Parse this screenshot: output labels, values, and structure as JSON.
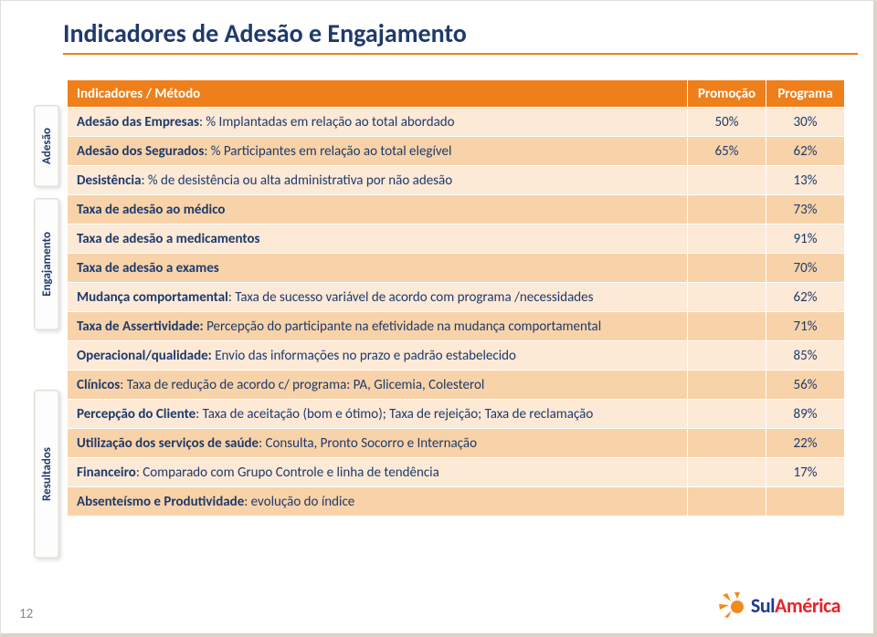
{
  "page": {
    "title": "Indicadores de Adesão e Engajamento",
    "number": "12"
  },
  "side_tabs": {
    "adesao": "Adesão",
    "engajamento": "Engajamento",
    "resultados": "Resultados"
  },
  "table": {
    "header": {
      "indicador": "Indicadores / Método",
      "promocao": "Promoção",
      "programa": "Programa"
    },
    "colors": {
      "header_bg": "#ef7f1a",
      "row_light": "#fce9d6",
      "row_dark": "#f8d3a9",
      "text": "#1f3a6b"
    },
    "rows": [
      {
        "label_bold": "Adesão das Empresas",
        "label_rest": ": % Implantadas em relação ao total abordado",
        "prom": "50%",
        "prog": "30%"
      },
      {
        "label_bold": "Adesão dos Segurados",
        "label_rest": ": % Participantes em relação ao total elegível",
        "prom": "65%",
        "prog": "62%"
      },
      {
        "label_bold": "Desistência",
        "label_rest": ": % de desistência ou alta administrativa por não adesão",
        "prom": "",
        "prog": "13%"
      },
      {
        "label_bold": "Taxa de adesão ao médico",
        "label_rest": "",
        "prom": "",
        "prog": "73%"
      },
      {
        "label_bold": "Taxa de adesão a medicamentos",
        "label_rest": "",
        "prom": "",
        "prog": "91%"
      },
      {
        "label_bold": "Taxa de adesão a exames",
        "label_rest": "",
        "prom": "",
        "prog": "70%"
      },
      {
        "label_bold": "Mudança comportamental",
        "label_rest": ": Taxa de sucesso variável de acordo com programa /necessidades",
        "prom": "",
        "prog": "62%"
      },
      {
        "label_bold": "Taxa de Assertividade:",
        "label_rest": " Percepção do participante na efetividade na mudança comportamental",
        "prom": "",
        "prog": "71%"
      },
      {
        "label_bold": "Operacional/qualidade:",
        "label_rest": " Envio das informações no prazo e padrão estabelecido",
        "prom": "",
        "prog": "85%"
      },
      {
        "label_bold": "Clínicos",
        "label_rest": ": Taxa de redução de acordo c/ programa: PA, Glicemia, Colesterol",
        "prom": "",
        "prog": "56%"
      },
      {
        "label_bold": "Percepção do Cliente",
        "label_rest": ": Taxa de aceitação (bom e ótimo); Taxa de rejeição; Taxa de reclamação",
        "prom": "",
        "prog": "89%"
      },
      {
        "label_bold": "Utilização dos serviços de saúde",
        "label_rest": ": Consulta, Pronto Socorro e Internação",
        "prom": "",
        "prog": "22%"
      },
      {
        "label_bold": "Financeiro",
        "label_rest": ": Comparado com Grupo Controle e linha de tendência",
        "prom": "",
        "prog": "17%"
      },
      {
        "label_bold": "Absenteísmo e Produtividade",
        "label_rest": ": evolução do índice",
        "prom": "",
        "prog": ""
      }
    ]
  },
  "logo": {
    "sul": "Sul",
    "america": "América",
    "colors": {
      "blue": "#1f3a93",
      "red": "#e52329",
      "orange": "#f38a1f"
    }
  }
}
